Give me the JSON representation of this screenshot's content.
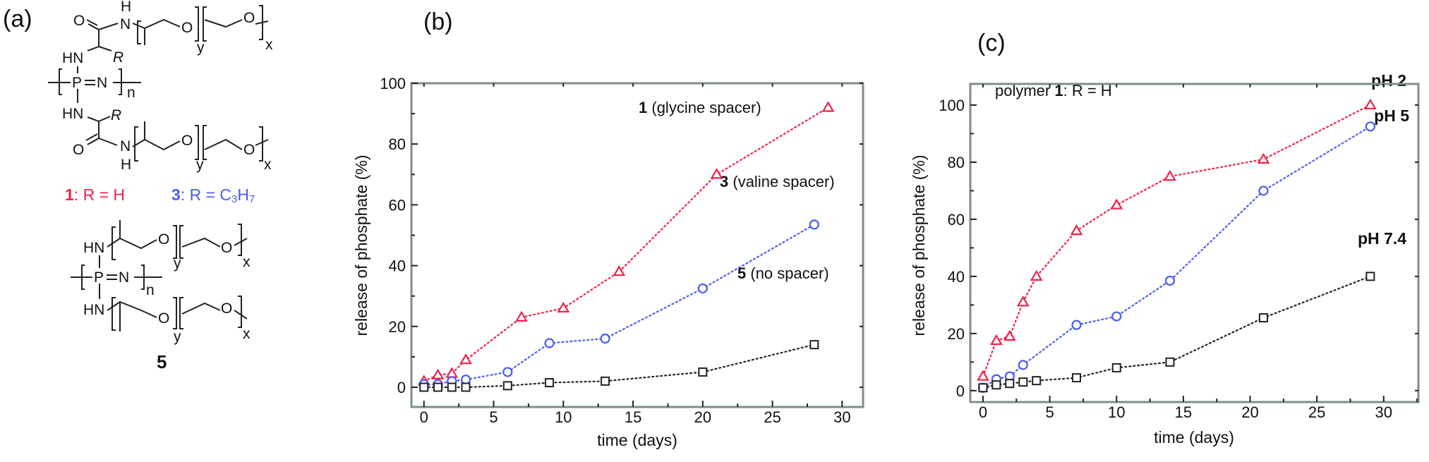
{
  "colors": {
    "red": "#f0224a",
    "blue": "#4a5cf0",
    "black": "#222222",
    "axis": "#7f8e88"
  },
  "panel_a": {
    "label": "(a)",
    "atoms": {
      "O": "O",
      "N": "N",
      "H": "H",
      "HN": "HN",
      "NH": "NH",
      "R": "R",
      "P": "P",
      "n": "n",
      "x": "x",
      "y": "y"
    },
    "legend_1_num": "1",
    "legend_1_text": ": R = H",
    "legend_3_num": "3",
    "legend_3_text": ": R = C",
    "legend_3_sub1": "3",
    "legend_3_h": "H",
    "legend_3_sub2": "7",
    "compound_5": "5"
  },
  "chart_data": [
    {
      "panel_label": "(b)",
      "type": "line",
      "xlabel": "time (days)",
      "ylabel": "release of phosphate (%)",
      "xlim": [
        -0.9,
        31.5
      ],
      "ylim": [
        -6.5,
        100
      ],
      "xticks": [
        0,
        5,
        10,
        15,
        20,
        25,
        30
      ],
      "yticks": [
        0,
        20,
        40,
        60,
        80,
        100
      ],
      "grid": false,
      "series": [
        {
          "name_num": "1",
          "name": "(glycine spacer)",
          "color": "#f0224a",
          "marker": "triangle",
          "x": [
            0,
            1,
            2,
            3,
            7,
            10,
            14,
            21,
            29
          ],
          "y": [
            2,
            4,
            4.5,
            9,
            23,
            26,
            38,
            70,
            92
          ]
        },
        {
          "name_num": "3",
          "name": "(valine spacer)",
          "color": "#4a5cf0",
          "marker": "circle",
          "x": [
            0,
            1,
            2,
            3,
            6,
            9,
            13,
            20,
            28
          ],
          "y": [
            1,
            1,
            2,
            2.5,
            5,
            14.5,
            16,
            32.5,
            53.5
          ]
        },
        {
          "name_num": "5",
          "name": "(no spacer)",
          "color": "#222222",
          "marker": "square",
          "x": [
            0,
            1,
            2,
            3,
            6,
            9,
            13,
            20,
            28
          ],
          "y": [
            0,
            0,
            0,
            0,
            0.5,
            1.5,
            2,
            5,
            14
          ]
        }
      ]
    },
    {
      "panel_label": "(c)",
      "type": "line",
      "xlabel": "time (days)",
      "ylabel": "release of phosphate (%)",
      "annotation": "polymer ",
      "annotation_num": "1",
      "annotation_rest": ": R = H",
      "xlim": [
        -0.95,
        32.6
      ],
      "ylim": [
        -4,
        107.4
      ],
      "xticks": [
        0,
        5,
        10,
        15,
        20,
        25,
        30
      ],
      "yticks": [
        0,
        20,
        40,
        60,
        80,
        100
      ],
      "grid": false,
      "series": [
        {
          "name": "pH 2",
          "color": "#f0224a",
          "marker": "triangle",
          "x": [
            0,
            1,
            2,
            3,
            4,
            7,
            10,
            14,
            21,
            29
          ],
          "y": [
            5,
            17.5,
            19,
            31,
            40,
            56,
            65,
            75,
            81,
            100
          ]
        },
        {
          "name": "pH 5",
          "color": "#4a5cf0",
          "marker": "circle",
          "x": [
            0,
            1,
            2,
            3,
            7,
            10,
            14,
            21,
            29
          ],
          "y": [
            1,
            4,
            5,
            9,
            23,
            26,
            38.5,
            70,
            92.5
          ]
        },
        {
          "name": "pH 7.4",
          "color": "#222222",
          "marker": "square",
          "x": [
            0,
            1,
            2,
            3,
            4,
            7,
            10,
            14,
            21,
            29
          ],
          "y": [
            1,
            2,
            2.5,
            3,
            3.5,
            4.5,
            8,
            10,
            25.5,
            40
          ]
        }
      ]
    }
  ]
}
